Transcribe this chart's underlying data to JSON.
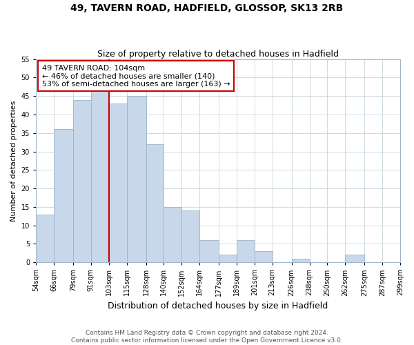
{
  "title": "49, TAVERN ROAD, HADFIELD, GLOSSOP, SK13 2RB",
  "subtitle": "Size of property relative to detached houses in Hadfield",
  "xlabel": "Distribution of detached houses by size in Hadfield",
  "ylabel": "Number of detached properties",
  "bar_lefts": [
    54,
    66,
    79,
    91,
    103,
    115,
    128,
    140,
    152,
    164,
    177,
    189,
    201,
    213,
    226,
    238,
    250,
    262,
    275,
    287
  ],
  "bar_rights": [
    66,
    79,
    91,
    103,
    115,
    128,
    140,
    152,
    164,
    177,
    189,
    201,
    213,
    226,
    238,
    250,
    262,
    275,
    287,
    299
  ],
  "bar_heights": [
    13,
    36,
    44,
    46,
    43,
    45,
    32,
    15,
    14,
    6,
    2,
    6,
    3,
    0,
    1,
    0,
    0,
    2,
    0,
    0
  ],
  "tick_labels": [
    "54sqm",
    "66sqm",
    "79sqm",
    "91sqm",
    "103sqm",
    "115sqm",
    "128sqm",
    "140sqm",
    "152sqm",
    "164sqm",
    "177sqm",
    "189sqm",
    "201sqm",
    "213sqm",
    "226sqm",
    "238sqm",
    "250sqm",
    "262sqm",
    "275sqm",
    "287sqm",
    "299sqm"
  ],
  "tick_positions": [
    54,
    66,
    79,
    91,
    103,
    115,
    128,
    140,
    152,
    164,
    177,
    189,
    201,
    213,
    226,
    238,
    250,
    262,
    275,
    287,
    299
  ],
  "bar_color": "#c8d8ea",
  "bar_edge_color": "#9ab4cc",
  "vline_x": 103,
  "vline_color": "#cc0000",
  "annotation_text": "49 TAVERN ROAD: 104sqm\n← 46% of detached houses are smaller (140)\n53% of semi-detached houses are larger (163) →",
  "annotation_box_color": "white",
  "annotation_box_edge_color": "#cc0000",
  "ylim": [
    0,
    55
  ],
  "yticks": [
    0,
    5,
    10,
    15,
    20,
    25,
    30,
    35,
    40,
    45,
    50,
    55
  ],
  "footer_line1": "Contains HM Land Registry data © Crown copyright and database right 2024.",
  "footer_line2": "Contains public sector information licensed under the Open Government Licence v3.0.",
  "title_fontsize": 10,
  "subtitle_fontsize": 9,
  "xlabel_fontsize": 9,
  "ylabel_fontsize": 8,
  "tick_fontsize": 7,
  "annotation_fontsize": 8,
  "footer_fontsize": 6.5
}
